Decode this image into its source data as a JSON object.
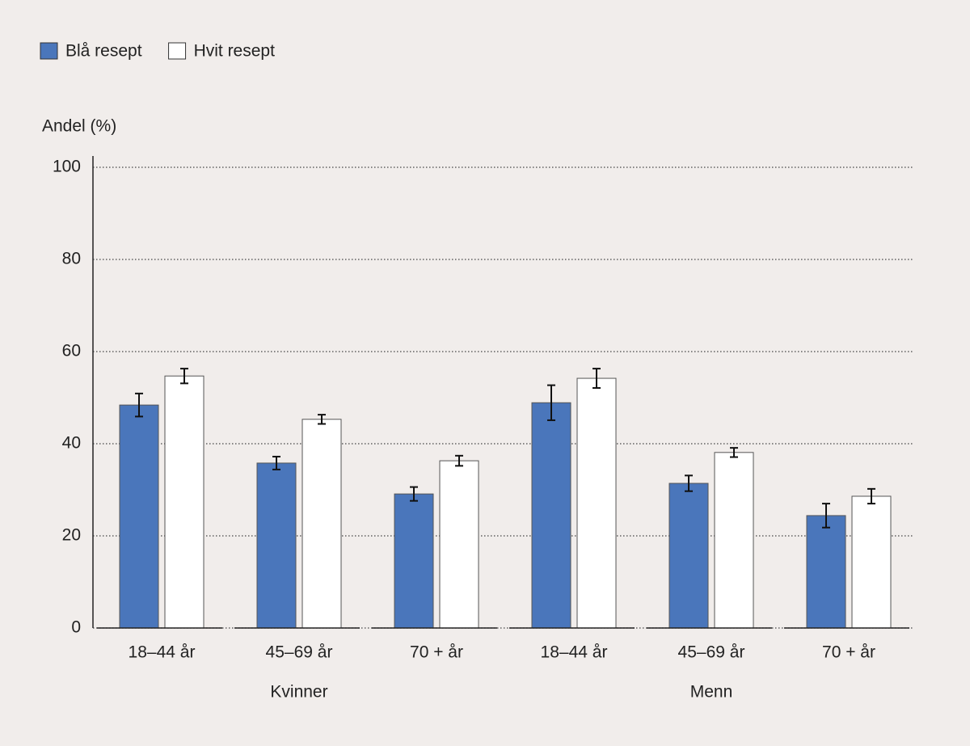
{
  "chart_data": {
    "type": "bar",
    "y_label": "Andel (%)",
    "groups": [
      {
        "name": "Kvinner",
        "categories": [
          "18–44 år",
          "45–69 år",
          "70 + år"
        ]
      },
      {
        "name": "Menn",
        "categories": [
          "18–44 år",
          "45–69 år",
          "70 + år"
        ]
      }
    ],
    "series": [
      {
        "name": "Blå resept",
        "color": "#4a76bb",
        "values": [
          48.4,
          35.8,
          29.1,
          48.9,
          31.4,
          24.4
        ],
        "errors": [
          2.5,
          1.4,
          1.5,
          3.8,
          1.7,
          2.6
        ]
      },
      {
        "name": "Hvit resept",
        "color": "#ffffff",
        "values": [
          54.7,
          45.3,
          36.3,
          54.2,
          38.1,
          28.6
        ],
        "errors": [
          1.6,
          1.0,
          1.1,
          2.1,
          1.0,
          1.6
        ]
      }
    ],
    "ylim": [
      0,
      100
    ],
    "yticks": [
      0,
      20,
      40,
      60,
      80,
      100
    ],
    "grid": true,
    "legend": "top-left"
  }
}
